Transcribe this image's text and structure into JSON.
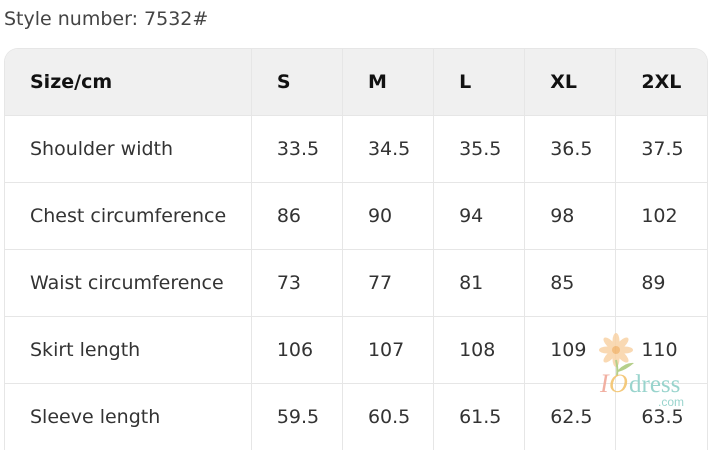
{
  "style_number": "Style number: 7532#",
  "table": {
    "header": [
      "Size/cm",
      "S",
      "M",
      "L",
      "XL",
      "2XL"
    ],
    "rows": [
      [
        "Shoulder width",
        "33.5",
        "34.5",
        "35.5",
        "36.5",
        "37.5"
      ],
      [
        "Chest circumference",
        "86",
        "90",
        "94",
        "98",
        "102"
      ],
      [
        "Waist circumference",
        "73",
        "77",
        "81",
        "85",
        "89"
      ],
      [
        "Skirt length",
        "106",
        "107",
        "108",
        "109",
        "110"
      ],
      [
        "Sleeve length",
        "59.5",
        "60.5",
        "61.5",
        "62.5",
        "63.5"
      ]
    ]
  },
  "watermark": {
    "text": "IOdress",
    "suffix": ".com",
    "colors": [
      "#f0a899",
      "#f3c46e",
      "#8fd0c8"
    ]
  }
}
